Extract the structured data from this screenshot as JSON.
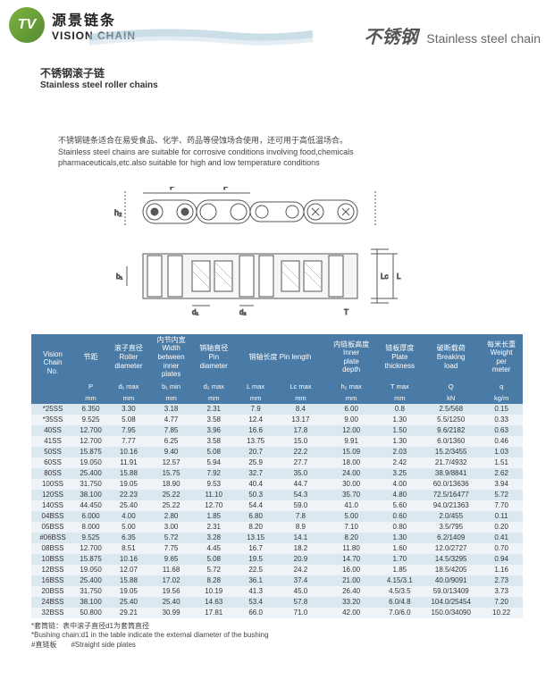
{
  "header": {
    "logo_text": "TV",
    "brand_cn": "源景链条",
    "brand_en": "VISION CHAIN",
    "right_cn": "不锈钢",
    "right_en": "Stainless steel chain"
  },
  "subtitle": {
    "cn": "不锈钢滚子链",
    "en": "Stainless steel roller chains"
  },
  "description": {
    "line1": "不锈钢链条适合在易受食品、化学、药品等侵蚀场合使用，还可用于高低温场合。",
    "line2": "Stainless steel chains are suitable for corrosive conditions involving food,chemicals",
    "line3": "pharmaceuticals,etc.also suitable for high and low temperature conditions"
  },
  "table": {
    "colors": {
      "header_bg": "#4a7ba6",
      "row_odd": "#dce8f0",
      "row_even": "#edf3f7"
    },
    "headers_row1": [
      "Vision Chain No.",
      "节距",
      "滚子直径 Roller diameter",
      "内节内宽 Width between inner plates",
      "销轴直径 Pin diameter",
      "销轴长度 Pin length",
      "",
      "内链板高度 Inner plate depth",
      "链板厚度 Plate thickness",
      "破断载荷 Breaking load",
      "每米长重 Weight per meter"
    ],
    "headers_row2": [
      "",
      "Pitch",
      "",
      "",
      "",
      "",
      "",
      "",
      "",
      "",
      ""
    ],
    "headers_row3": [
      "",
      "P",
      "d₁ max",
      "b₁ min",
      "d₂ max",
      "L max",
      "Lc max",
      "h₂ max",
      "T max",
      "Q",
      "q"
    ],
    "headers_row4": [
      "",
      "mm",
      "mm",
      "mm",
      "mm",
      "mm",
      "mm",
      "mm",
      "mm",
      "kN",
      "kg/m"
    ],
    "rows": [
      [
        "*25SS",
        "6.350",
        "3.30",
        "3.18",
        "2.31",
        "7.9",
        "8.4",
        "6.00",
        "0.8",
        "2.5/568",
        "0.15"
      ],
      [
        "*35SS",
        "9.525",
        "5.08",
        "4.77",
        "3.58",
        "12.4",
        "13.17",
        "9.00",
        "1.30",
        "5.5/1250",
        "0.33"
      ],
      [
        "40SS",
        "12.700",
        "7.95",
        "7.85",
        "3.96",
        "16.6",
        "17.8",
        "12.00",
        "1.50",
        "9.6/2182",
        "0.63"
      ],
      [
        "41SS",
        "12.700",
        "7.77",
        "6.25",
        "3.58",
        "13.75",
        "15.0",
        "9.91",
        "1.30",
        "6.0/1360",
        "0.46"
      ],
      [
        "50SS",
        "15.875",
        "10.16",
        "9.40",
        "5.08",
        "20.7",
        "22.2",
        "15.09",
        "2.03",
        "15.2/3455",
        "1.03"
      ],
      [
        "60SS",
        "19.050",
        "11.91",
        "12.57",
        "5.94",
        "25.9",
        "27.7",
        "18.00",
        "2.42",
        "21.7/4932",
        "1.51"
      ],
      [
        "80SS",
        "25.400",
        "15.88",
        "15.75",
        "7.92",
        "32.7",
        "35.0",
        "24.00",
        "3.25",
        "38.9/8841",
        "2.62"
      ],
      [
        "100SS",
        "31.750",
        "19.05",
        "18.90",
        "9.53",
        "40.4",
        "44.7",
        "30.00",
        "4.00",
        "60.0/13636",
        "3.94"
      ],
      [
        "120SS",
        "38.100",
        "22.23",
        "25.22",
        "11.10",
        "50.3",
        "54.3",
        "35.70",
        "4.80",
        "72.5/16477",
        "5.72"
      ],
      [
        "140SS",
        "44.450",
        "25.40",
        "25.22",
        "12.70",
        "54.4",
        "59.0",
        "41.0",
        "5.60",
        "94.0/21363",
        "7.70"
      ],
      [
        "04BSS",
        "6.000",
        "4.00",
        "2.80",
        "1.85",
        "6.80",
        "7.8",
        "5.00",
        "0.60",
        "2.0/455",
        "0.11"
      ],
      [
        "05BSS",
        "8.000",
        "5.00",
        "3.00",
        "2.31",
        "8.20",
        "8.9",
        "7.10",
        "0.80",
        "3.5/795",
        "0.20"
      ],
      [
        "#06BSS",
        "9.525",
        "6.35",
        "5.72",
        "3.28",
        "13.15",
        "14.1",
        "8.20",
        "1.30",
        "6.2/1409",
        "0.41"
      ],
      [
        "08BSS",
        "12.700",
        "8.51",
        "7.75",
        "4.45",
        "16.7",
        "18.2",
        "11.80",
        "1.60",
        "12.0/2727",
        "0.70"
      ],
      [
        "10BSS",
        "15.875",
        "10.16",
        "9.65",
        "5.08",
        "19.5",
        "20.9",
        "14.70",
        "1.70",
        "14.5/3295",
        "0.94"
      ],
      [
        "12BSS",
        "19.050",
        "12.07",
        "11.68",
        "5.72",
        "22.5",
        "24.2",
        "16.00",
        "1.85",
        "18.5/4205",
        "1.16"
      ],
      [
        "16BSS",
        "25.400",
        "15.88",
        "17.02",
        "8.28",
        "36.1",
        "37.4",
        "21.00",
        "4.15/3.1",
        "40.0/9091",
        "2.73"
      ],
      [
        "20BSS",
        "31.750",
        "19.05",
        "19.56",
        "10.19",
        "41.3",
        "45.0",
        "26.40",
        "4.5/3.5",
        "59.0/13409",
        "3.73"
      ],
      [
        "24BSS",
        "38.100",
        "25.40",
        "25.40",
        "14.63",
        "53.4",
        "57.8",
        "33.20",
        "6.0/4.8",
        "104.0/25454",
        "7.20"
      ],
      [
        "32BSS",
        "50.800",
        "29.21",
        "30.99",
        "17.81",
        "66.0",
        "71.0",
        "42.00",
        "7.0/6.0",
        "150.0/34090",
        "10.22"
      ]
    ]
  },
  "footnotes": {
    "line1": "*套筒链：表中滚子直径d1为套筒直径",
    "line2": "*Bushing chain:d1 in the table indicate the external diameter of the bushing",
    "line3": "#直链板　　#Straight side plates"
  }
}
